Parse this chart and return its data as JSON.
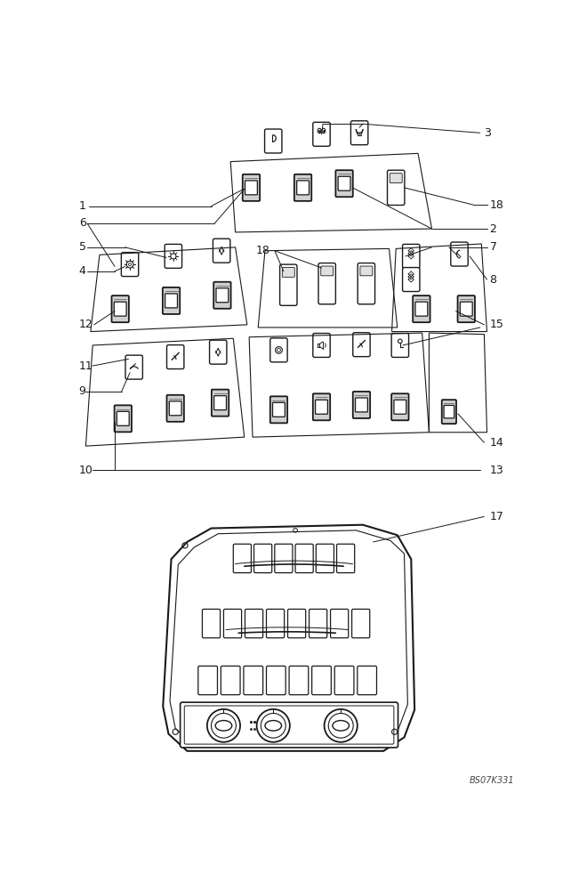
{
  "bg_color": "#ffffff",
  "line_color": "#1a1a1a",
  "watermark": "BS07K331",
  "fig_width": 6.6,
  "fig_height": 10.0
}
